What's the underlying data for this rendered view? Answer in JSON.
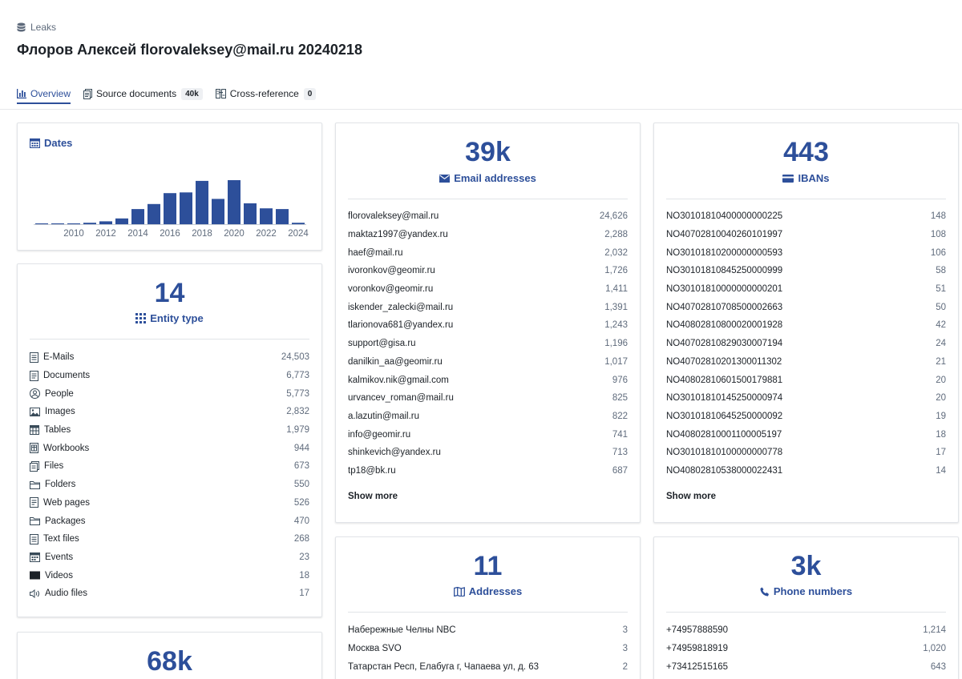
{
  "breadcrumb": {
    "label": "Leaks",
    "icon": "database-icon"
  },
  "page_title": "Флоров Алексей florovaleksey@mail.ru 20240218",
  "tabs": [
    {
      "label": "Overview",
      "icon": "chart-icon",
      "active": true
    },
    {
      "label": "Source documents",
      "icon": "document-icon",
      "count": "40k"
    },
    {
      "label": "Cross-reference",
      "icon": "cross-reference-icon",
      "count": "0"
    }
  ],
  "dates": {
    "title": "Dates",
    "chart_data": {
      "type": "bar",
      "x": [
        2008,
        2009,
        2010,
        2011,
        2012,
        2013,
        2014,
        2015,
        2016,
        2017,
        2018,
        2019,
        2020,
        2021,
        2022,
        2023,
        2024
      ],
      "values": [
        1,
        1,
        1,
        2,
        4,
        8,
        21,
        28,
        43,
        44,
        60,
        35,
        61,
        29,
        22,
        21,
        2
      ],
      "tick_labels": [
        "2010",
        "2012",
        "2014",
        "2016",
        "2018",
        "2020",
        "2022",
        "2024"
      ],
      "color": "#2d4f9a"
    }
  },
  "entity_type": {
    "count": "14",
    "label": "Entity type",
    "items": [
      {
        "label": "E-Mails",
        "count": "24,503",
        "icon": "email-doc-icon"
      },
      {
        "label": "Documents",
        "count": "6,773",
        "icon": "document-icon"
      },
      {
        "label": "People",
        "count": "5,773",
        "icon": "person-icon"
      },
      {
        "label": "Images",
        "count": "2,832",
        "icon": "image-icon"
      },
      {
        "label": "Tables",
        "count": "1,979",
        "icon": "table-icon"
      },
      {
        "label": "Workbooks",
        "count": "944",
        "icon": "workbook-icon"
      },
      {
        "label": "Files",
        "count": "673",
        "icon": "file-icon"
      },
      {
        "label": "Folders",
        "count": "550",
        "icon": "folder-icon"
      },
      {
        "label": "Web pages",
        "count": "526",
        "icon": "web-page-icon"
      },
      {
        "label": "Packages",
        "count": "470",
        "icon": "package-icon"
      },
      {
        "label": "Text files",
        "count": "268",
        "icon": "text-file-icon"
      },
      {
        "label": "Events",
        "count": "23",
        "icon": "calendar-icon"
      },
      {
        "label": "Videos",
        "count": "18",
        "icon": "video-icon"
      },
      {
        "label": "Audio files",
        "count": "17",
        "icon": "audio-icon"
      }
    ]
  },
  "people_card": {
    "count": "68k"
  },
  "emails": {
    "count": "39k",
    "label": "Email addresses",
    "items": [
      {
        "label": "florovaleksey@mail.ru",
        "count": "24,626"
      },
      {
        "label": "maktaz1997@yandex.ru",
        "count": "2,288"
      },
      {
        "label": "haef@mail.ru",
        "count": "2,032"
      },
      {
        "label": "ivoronkov@geomir.ru",
        "count": "1,726"
      },
      {
        "label": "voronkov@geomir.ru",
        "count": "1,411"
      },
      {
        "label": "iskender_zalecki@mail.ru",
        "count": "1,391"
      },
      {
        "label": "tlarionova681@yandex.ru",
        "count": "1,243"
      },
      {
        "label": "support@gisa.ru",
        "count": "1,196"
      },
      {
        "label": "danilkin_aa@geomir.ru",
        "count": "1,017"
      },
      {
        "label": "kalmikov.nik@gmail.com",
        "count": "976"
      },
      {
        "label": "urvancev_roman@mail.ru",
        "count": "825"
      },
      {
        "label": "a.lazutin@mail.ru",
        "count": "822"
      },
      {
        "label": "info@geomir.ru",
        "count": "741"
      },
      {
        "label": "shinkevich@yandex.ru",
        "count": "713"
      },
      {
        "label": "tp18@bk.ru",
        "count": "687"
      }
    ],
    "show_more": "Show more"
  },
  "ibans": {
    "count": "443",
    "label": "IBANs",
    "items": [
      {
        "label": "NO30101810400000000225",
        "count": "148"
      },
      {
        "label": "NO40702810040260101997",
        "count": "108"
      },
      {
        "label": "NO30101810200000000593",
        "count": "106"
      },
      {
        "label": "NO30101810845250000999",
        "count": "58"
      },
      {
        "label": "NO30101810000000000201",
        "count": "51"
      },
      {
        "label": "NO40702810708500002663",
        "count": "50"
      },
      {
        "label": "NO40802810800020001928",
        "count": "42"
      },
      {
        "label": "NO40702810829030007194",
        "count": "24"
      },
      {
        "label": "NO40702810201300011302",
        "count": "21"
      },
      {
        "label": "NO40802810601500179881",
        "count": "20"
      },
      {
        "label": "NO30101810145250000974",
        "count": "20"
      },
      {
        "label": "NO30101810645250000092",
        "count": "19"
      },
      {
        "label": "NO40802810001100005197",
        "count": "18"
      },
      {
        "label": "NO30101810100000000778",
        "count": "17"
      },
      {
        "label": "NO40802810538000022431",
        "count": "14"
      }
    ],
    "show_more": "Show more"
  },
  "addresses": {
    "count": "11",
    "label": "Addresses",
    "items": [
      {
        "label": "Набережные Челны NBC",
        "count": "3"
      },
      {
        "label": "Москва SVO",
        "count": "3"
      },
      {
        "label": "Татарстан Респ, Елабуга г, Чапаева ул, д. 63",
        "count": "2"
      }
    ]
  },
  "phones": {
    "count": "3k",
    "label": "Phone numbers",
    "items": [
      {
        "label": "+74957888590",
        "count": "1,214"
      },
      {
        "label": "+74959818919",
        "count": "1,020"
      },
      {
        "label": "+73412515165",
        "count": "643"
      }
    ]
  }
}
